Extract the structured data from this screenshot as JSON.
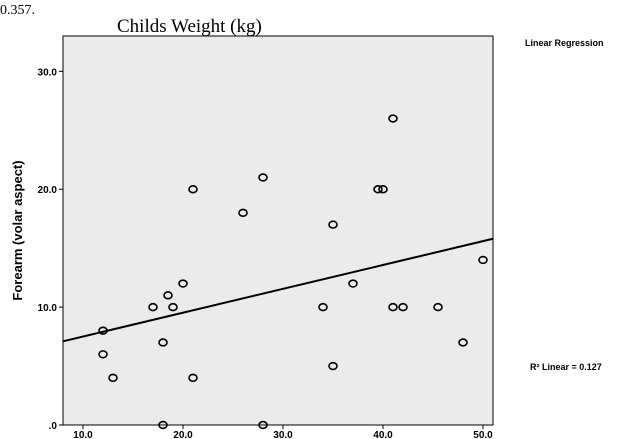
{
  "caption_fragment": "0.357.",
  "chart_data": {
    "type": "scatter",
    "title": "Childs Weight (kg)",
    "xlabel": "",
    "ylabel": "Forearm (volar aspect)",
    "xlim": [
      8,
      51
    ],
    "ylim": [
      0,
      33
    ],
    "x_ticks": [
      10,
      20,
      30,
      40,
      50
    ],
    "x_tick_labels": [
      "10.0",
      "20.0",
      "30.0",
      "40.0",
      "50.0"
    ],
    "y_ticks": [
      0,
      10,
      20,
      30
    ],
    "y_tick_labels": [
      ".0",
      "10.0",
      "20.0",
      "30.0"
    ],
    "grid": false,
    "background": "#ebebeb",
    "points": [
      {
        "x": 12,
        "y": 8
      },
      {
        "x": 12,
        "y": 6
      },
      {
        "x": 13,
        "y": 4
      },
      {
        "x": 17,
        "y": 10
      },
      {
        "x": 18,
        "y": 7
      },
      {
        "x": 18,
        "y": 0
      },
      {
        "x": 18.5,
        "y": 11
      },
      {
        "x": 19,
        "y": 10
      },
      {
        "x": 20,
        "y": 12
      },
      {
        "x": 21,
        "y": 20
      },
      {
        "x": 21,
        "y": 4
      },
      {
        "x": 26,
        "y": 18
      },
      {
        "x": 28,
        "y": 21
      },
      {
        "x": 28,
        "y": 0
      },
      {
        "x": 34,
        "y": 10
      },
      {
        "x": 35,
        "y": 17
      },
      {
        "x": 35,
        "y": 5
      },
      {
        "x": 37,
        "y": 12
      },
      {
        "x": 39.5,
        "y": 20
      },
      {
        "x": 40,
        "y": 20
      },
      {
        "x": 41,
        "y": 26
      },
      {
        "x": 41,
        "y": 10
      },
      {
        "x": 42,
        "y": 10
      },
      {
        "x": 45.5,
        "y": 10
      },
      {
        "x": 48,
        "y": 7
      },
      {
        "x": 50,
        "y": 14
      }
    ],
    "fit_line": {
      "x": [
        8,
        51
      ],
      "y": [
        7.1,
        15.8
      ]
    },
    "legend_title": "Linear Regression",
    "r_squared_label": "R² Linear = 0.127"
  }
}
